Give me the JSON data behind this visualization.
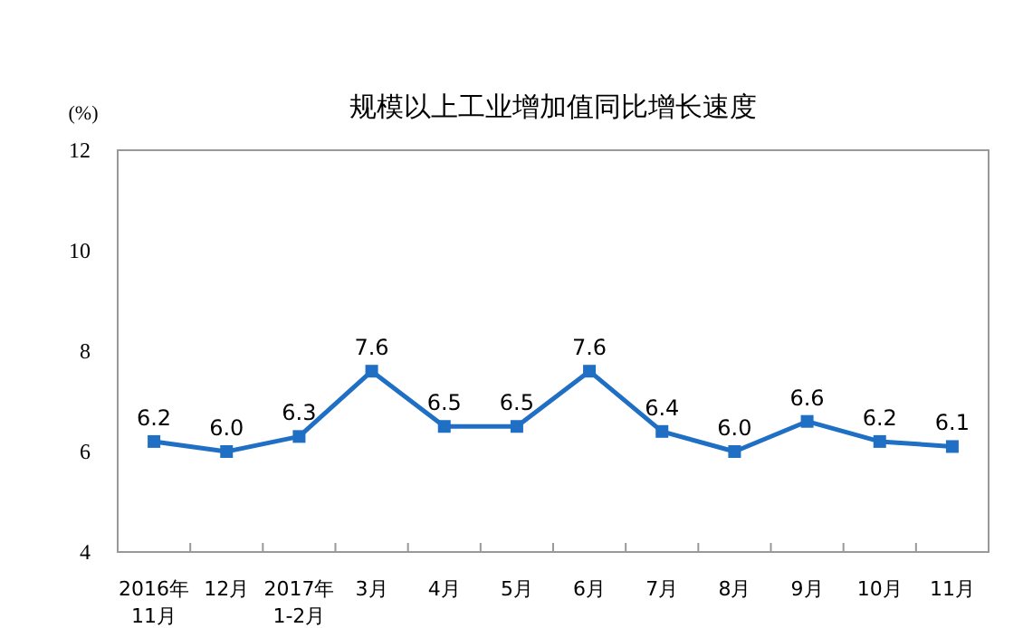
{
  "chart_data": {
    "type": "line",
    "title": "规模以上工业增加值同比增长速度",
    "ylabel": "(%)",
    "categories": [
      "2016年\n11月",
      "12月",
      "2017年\n1-2月",
      "3月",
      "4月",
      "5月",
      "6月",
      "7月",
      "8月",
      "9月",
      "10月",
      "11月"
    ],
    "series": [
      {
        "color": "#1f6fc5",
        "values": [
          6.2,
          6.0,
          6.3,
          7.6,
          6.5,
          6.5,
          7.6,
          6.4,
          6.0,
          6.6,
          6.2,
          6.1
        ],
        "value_labels": [
          "6.2",
          "6.0",
          "6.3",
          "7.6",
          "6.5",
          "6.5",
          "7.6",
          "6.4",
          "6.0",
          "6.6",
          "6.2",
          "6.1"
        ]
      }
    ],
    "ylim": [
      4,
      12
    ],
    "yticks": [
      4,
      6,
      8,
      10,
      12
    ],
    "marker": "square",
    "line_style": "solid",
    "grid": false
  }
}
